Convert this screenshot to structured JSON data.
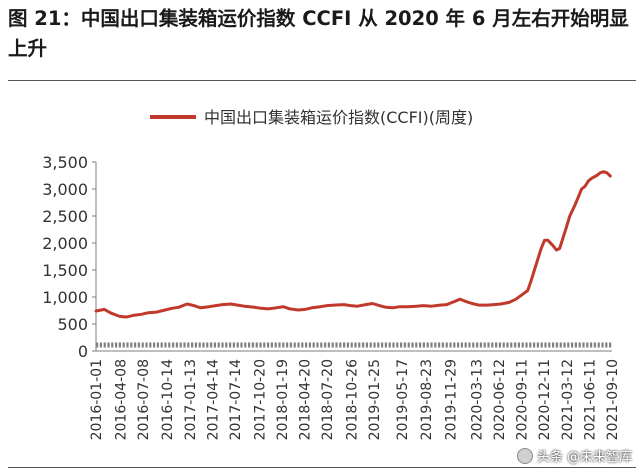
{
  "figure": {
    "title": "图 21：中国出口集装箱运价指数 CCFI 从 2020 年 6 月左右开始明显上升"
  },
  "watermark": {
    "text": "头条 @未来智库",
    "logo_text": "头条"
  },
  "colors": {
    "series": "#c0392b",
    "axis": "#7f7f7f",
    "text": "#333333"
  },
  "chart_data": {
    "type": "line",
    "title": "",
    "xlabel": "",
    "ylabel": "",
    "ylim": [
      0,
      3500
    ],
    "yticks": [
      0,
      500,
      1000,
      1500,
      2000,
      2500,
      3000,
      3500
    ],
    "ytick_labels": [
      "0",
      "500",
      "1,000",
      "1,500",
      "2,000",
      "2,500",
      "3,000",
      "3,500"
    ],
    "xlim": [
      "2016-01-01",
      "2021-11-12"
    ],
    "xtick_labels": [
      "2016-01-01",
      "2016-04-08",
      "2016-07-08",
      "2016-10-14",
      "2017-01-13",
      "2017-04-14",
      "2017-07-14",
      "2017-10-20",
      "2018-01-19",
      "2018-04-20",
      "2018-07-20",
      "2018-10-26",
      "2019-01-25",
      "2019-05-17",
      "2019-08-23",
      "2019-11-29",
      "2020-03-13",
      "2020-06-12",
      "2020-09-11",
      "2020-12-11",
      "2021-03-12",
      "2021-06-11",
      "2021-09-10"
    ],
    "grid": false,
    "legend_position": "top-center",
    "series": [
      {
        "name": "中国出口集装箱运价指数(CCFI)(周度)",
        "x": [
          "2016-01-01",
          "2016-02-05",
          "2016-03-04",
          "2016-04-08",
          "2016-05-06",
          "2016-06-03",
          "2016-07-08",
          "2016-08-05",
          "2016-09-09",
          "2016-10-14",
          "2016-11-11",
          "2016-12-09",
          "2017-01-13",
          "2017-02-10",
          "2017-03-10",
          "2017-04-14",
          "2017-05-12",
          "2017-06-09",
          "2017-07-14",
          "2017-08-11",
          "2017-09-08",
          "2017-10-20",
          "2017-11-17",
          "2017-12-15",
          "2018-01-19",
          "2018-02-16",
          "2018-03-16",
          "2018-04-20",
          "2018-05-18",
          "2018-06-15",
          "2018-07-20",
          "2018-08-17",
          "2018-09-14",
          "2018-10-26",
          "2018-11-23",
          "2018-12-21",
          "2019-01-25",
          "2019-02-22",
          "2019-03-22",
          "2019-04-19",
          "2019-05-17",
          "2019-06-14",
          "2019-07-19",
          "2019-08-23",
          "2019-09-20",
          "2019-10-25",
          "2019-11-29",
          "2019-12-27",
          "2020-01-24",
          "2020-02-21",
          "2020-03-13",
          "2020-04-10",
          "2020-05-08",
          "2020-06-12",
          "2020-07-10",
          "2020-08-07",
          "2020-09-11",
          "2020-10-09",
          "2020-11-06",
          "2020-11-27",
          "2020-12-11",
          "2020-12-25",
          "2021-01-08",
          "2021-01-22",
          "2021-02-05",
          "2021-02-19",
          "2021-03-12",
          "2021-03-26",
          "2021-04-09",
          "2021-04-23",
          "2021-05-07",
          "2021-05-21",
          "2021-06-11",
          "2021-06-25",
          "2021-07-09",
          "2021-07-23",
          "2021-08-06",
          "2021-08-20",
          "2021-09-10",
          "2021-09-24",
          "2021-10-08",
          "2021-10-22",
          "2021-11-05"
        ],
        "values": [
          740,
          770,
          700,
          640,
          630,
          660,
          680,
          710,
          720,
          760,
          790,
          810,
          870,
          840,
          800,
          820,
          840,
          860,
          870,
          850,
          830,
          810,
          790,
          780,
          800,
          820,
          780,
          760,
          770,
          800,
          820,
          840,
          850,
          860,
          840,
          830,
          860,
          880,
          840,
          810,
          800,
          820,
          820,
          830,
          840,
          830,
          850,
          860,
          910,
          960,
          920,
          880,
          850,
          850,
          860,
          870,
          900,
          960,
          1050,
          1120,
          1300,
          1500,
          1700,
          1900,
          2050,
          2050,
          1950,
          1870,
          1900,
          2100,
          2300,
          2500,
          2700,
          2850,
          3000,
          3050,
          3150,
          3200,
          3250,
          3300,
          3320,
          3300,
          3240
        ]
      }
    ]
  }
}
